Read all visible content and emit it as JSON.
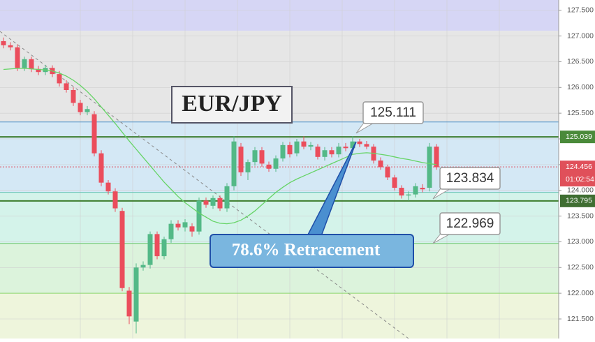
{
  "chart_data": {
    "type": "candlestick",
    "title": "EUR/JPY",
    "ylim": [
      121.12,
      127.7
    ],
    "yticks": [
      {
        "value": 121.5,
        "label": "121.500"
      },
      {
        "value": 122,
        "label": "122.000"
      },
      {
        "value": 122.5,
        "label": "122.500"
      },
      {
        "value": 123,
        "label": "123.000"
      },
      {
        "value": 123.5,
        "label": "123.500"
      },
      {
        "value": 124,
        "label": "124.000"
      },
      {
        "value": 124.5,
        "label": "124.500"
      },
      {
        "value": 125,
        "label": "125.000"
      },
      {
        "value": 125.5,
        "label": "125.500"
      },
      {
        "value": 126,
        "label": "126.000"
      },
      {
        "value": 126.5,
        "label": "126.500"
      },
      {
        "value": 127,
        "label": "127.000"
      },
      {
        "value": 127.5,
        "label": "127.500"
      }
    ],
    "up_color": "#53b987",
    "down_color": "#eb4d5c",
    "open": [
      126.9,
      126.82,
      126.78,
      126.38,
      126.55,
      126.36,
      126.3,
      126.38,
      126.26,
      126.08,
      125.95,
      125.7,
      125.52,
      125.48,
      124.72,
      124.15,
      123.98,
      123.6,
      122.05,
      121.45,
      122.5,
      122.55,
      123.15,
      122.72,
      123.05,
      123.35,
      123.28,
      123.3,
      123.2,
      123.8,
      123.7,
      123.85,
      123.65,
      124.08,
      124.85,
      124.35,
      124.55,
      124.78,
      124.5,
      124.42,
      124.62,
      124.88,
      124.72,
      124.95,
      124.85,
      124.85,
      124.65,
      124.78,
      124.7,
      124.85,
      124.82,
      124.95,
      124.9,
      124.85,
      124.58,
      124.45,
      124.25,
      124.05,
      123.9,
      123.92,
      124.05,
      124.05,
      124.85
    ],
    "close": [
      126.82,
      126.78,
      126.38,
      126.55,
      126.36,
      126.3,
      126.38,
      126.26,
      126.08,
      125.95,
      125.7,
      125.52,
      125.58,
      124.72,
      124.15,
      123.98,
      123.65,
      122.1,
      121.55,
      122.5,
      122.55,
      123.15,
      122.72,
      123.05,
      123.35,
      123.28,
      123.38,
      123.2,
      123.8,
      123.72,
      123.85,
      123.65,
      124.08,
      124.95,
      124.35,
      124.55,
      124.78,
      124.52,
      124.42,
      124.62,
      124.88,
      124.7,
      124.95,
      124.85,
      124.88,
      124.65,
      124.78,
      124.7,
      124.85,
      124.82,
      124.95,
      124.9,
      124.85,
      124.58,
      124.45,
      124.25,
      124.05,
      123.9,
      123.92,
      124.08,
      124.02,
      124.85,
      124.45
    ],
    "high": [
      126.97,
      126.88,
      126.84,
      126.6,
      126.6,
      126.42,
      126.44,
      126.43,
      126.32,
      126.14,
      126.0,
      125.76,
      125.64,
      125.54,
      124.78,
      124.2,
      124.04,
      123.66,
      122.12,
      122.58,
      122.62,
      123.2,
      123.2,
      123.1,
      123.42,
      123.42,
      123.44,
      123.36,
      123.86,
      123.86,
      123.9,
      123.9,
      124.14,
      125.05,
      124.92,
      124.6,
      124.84,
      124.84,
      124.56,
      124.68,
      124.94,
      124.94,
      125.0,
      125.05,
      124.94,
      124.9,
      124.84,
      124.84,
      124.92,
      124.92,
      125.05,
      125.0,
      124.96,
      124.9,
      124.64,
      124.5,
      124.3,
      124.1,
      123.98,
      124.14,
      124.12,
      124.92,
      124.9
    ],
    "low": [
      126.76,
      126.72,
      126.32,
      126.32,
      126.3,
      126.24,
      126.24,
      126.2,
      126.02,
      125.9,
      125.64,
      125.46,
      125.46,
      124.66,
      124.08,
      123.92,
      123.58,
      122.04,
      121.4,
      121.22,
      122.44,
      122.48,
      122.66,
      122.66,
      122.98,
      123.22,
      123.2,
      123.1,
      123.14,
      123.66,
      123.64,
      123.6,
      123.58,
      124.0,
      124.28,
      124.2,
      124.48,
      124.46,
      124.36,
      124.36,
      124.56,
      124.64,
      124.66,
      124.8,
      124.78,
      124.6,
      124.58,
      124.64,
      124.64,
      124.76,
      124.76,
      124.84,
      124.8,
      124.52,
      124.4,
      124.2,
      124.0,
      123.84,
      123.8,
      123.86,
      123.96,
      123.98,
      124.4
    ],
    "ma": [
      126.35,
      126.36,
      126.37,
      126.37,
      126.36,
      126.35,
      126.34,
      126.32,
      126.28,
      126.22,
      126.14,
      126.04,
      125.92,
      125.78,
      125.62,
      125.46,
      125.3,
      125.13,
      124.96,
      124.8,
      124.64,
      124.48,
      124.32,
      124.16,
      124.02,
      123.88,
      123.76,
      123.66,
      123.56,
      123.48,
      123.4,
      123.36,
      123.35,
      123.37,
      123.42,
      123.5,
      123.6,
      123.72,
      123.84,
      123.96,
      124.06,
      124.15,
      124.22,
      124.28,
      124.34,
      124.4,
      124.46,
      124.52,
      124.58,
      124.64,
      124.7,
      124.72,
      124.73,
      124.72,
      124.7,
      124.68,
      124.65,
      124.62,
      124.6,
      124.57,
      124.54,
      124.52,
      124.5
    ],
    "ma_color": "#66d466",
    "bands": [
      {
        "top": 127.7,
        "bottom": 127.1,
        "color": "#d6d6f5"
      },
      {
        "top": 127.1,
        "bottom": 125.33,
        "color": "#e6e6e6"
      },
      {
        "top": 125.33,
        "bottom": 123.96,
        "color": "#d4e8f5"
      },
      {
        "top": 123.96,
        "bottom": 122.969,
        "color": "#d4f3ea"
      },
      {
        "top": 122.969,
        "bottom": 122.0,
        "color": "#dcf3dc"
      },
      {
        "top": 122.0,
        "bottom": 121.12,
        "color": "#eef5dc"
      }
    ],
    "levels": [
      {
        "value": 125.33,
        "color": "#4a90c8"
      },
      {
        "value": 125.039,
        "color": "#3d7d2e"
      },
      {
        "value": 124.456,
        "color": "#e05060"
      },
      {
        "value": 123.96,
        "color": "#6cc6b6"
      },
      {
        "value": 123.795,
        "color": "#3d7d2e"
      },
      {
        "value": 122.969,
        "color": "#6cc66c"
      },
      {
        "value": 122.0,
        "color": "#8cd66c"
      }
    ],
    "badges": [
      {
        "value": 125.039,
        "color": "#4a8a3a"
      },
      {
        "value": 124.456,
        "color": "#e0505a"
      },
      {
        "value": 123.795,
        "color": "#3f6e32"
      }
    ],
    "countdown": "01:02:54",
    "callouts": [
      {
        "value": 125.111
      },
      {
        "value": 123.834
      },
      {
        "value": 122.969
      }
    ],
    "annotation": "78.6% Retracement"
  }
}
